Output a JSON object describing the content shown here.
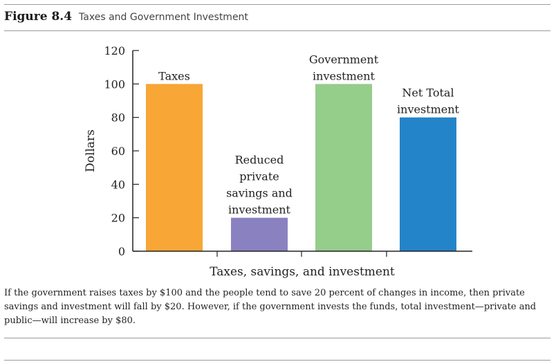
{
  "figure": {
    "number": "Figure 8.4",
    "title": "Taxes and Government Investment"
  },
  "caption": "If the government raises taxes by $100 and the people tend to save 20 percent of changes in income, then private savings and investment will fall by $20. However, if the government invests the funds, total investment—private and public—will increase by $80.",
  "chart_data": {
    "type": "bar",
    "categories": [
      [
        "Taxes"
      ],
      [
        "Reduced",
        "private",
        "savings and",
        "investment"
      ],
      [
        "Government",
        "investment"
      ],
      [
        "Net Total",
        "investment"
      ]
    ],
    "values": [
      100,
      20,
      100,
      80
    ],
    "colors": [
      "#F8A636",
      "#8A82C0",
      "#95CD8B",
      "#2484C9"
    ],
    "xlabel": "Taxes, savings, and investment",
    "ylabel": "Dollars",
    "ylim": [
      0,
      120
    ],
    "yticks": [
      0,
      20,
      40,
      60,
      80,
      100,
      120
    ],
    "grid": false,
    "legend": "none"
  }
}
